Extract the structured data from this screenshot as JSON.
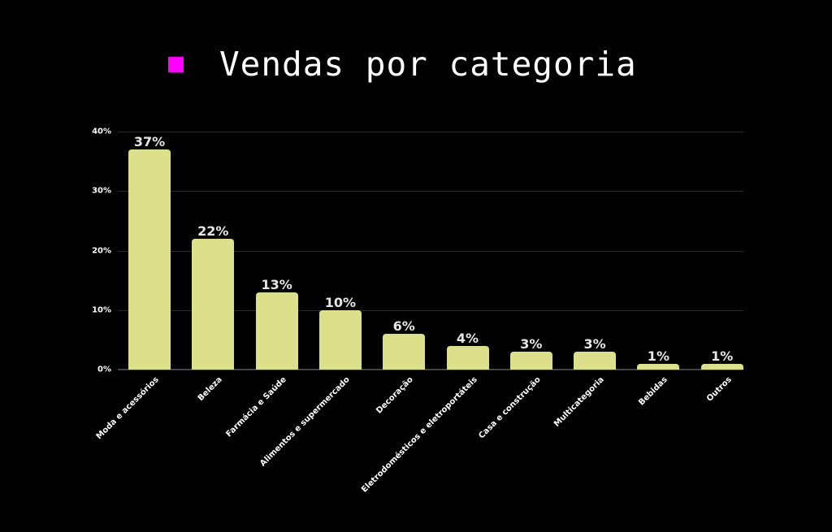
{
  "legend": {
    "label": "Vendas por categoria",
    "color": "#ff00ff"
  },
  "chart_data": {
    "type": "bar",
    "title": "Vendas por categoria",
    "xlabel": "",
    "ylabel": "",
    "ylim": [
      0,
      40
    ],
    "yticks": [
      "0%",
      "10%",
      "20%",
      "30%",
      "40%"
    ],
    "grid": true,
    "legend_position": "top",
    "bar_color": "#dde08a",
    "categories": [
      "Moda e acessórios",
      "Beleza",
      "Farmácia e Saúde",
      "Alimentos e supermercado",
      "Decoração",
      "Eletrodomésticos e eletroportáteis",
      "Casa e construção",
      "Multicategoria",
      "Bebidas",
      "Outros"
    ],
    "values": [
      37,
      22,
      13,
      10,
      6,
      4,
      3,
      3,
      1,
      1
    ],
    "data_labels": [
      "37%",
      "22%",
      "13%",
      "10%",
      "6%",
      "4%",
      "3%",
      "3%",
      "1%",
      "1%"
    ]
  }
}
